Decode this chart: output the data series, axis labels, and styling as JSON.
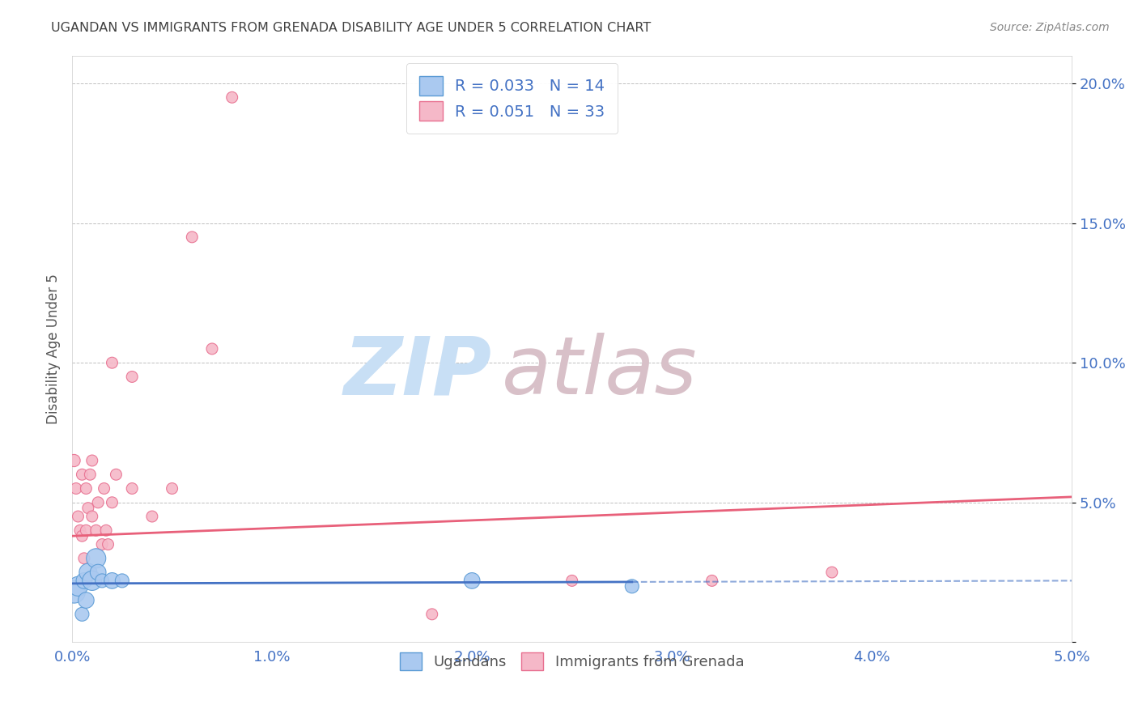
{
  "title": "UGANDAN VS IMMIGRANTS FROM GRENADA DISABILITY AGE UNDER 5 CORRELATION CHART",
  "source": "Source: ZipAtlas.com",
  "ylabel": "Disability Age Under 5",
  "xlim": [
    0.0,
    0.05
  ],
  "ylim": [
    0.0,
    0.21
  ],
  "xtick_labels": [
    "0.0%",
    "1.0%",
    "2.0%",
    "3.0%",
    "4.0%",
    "5.0%"
  ],
  "xtick_vals": [
    0.0,
    0.01,
    0.02,
    0.03,
    0.04,
    0.05
  ],
  "ytick_labels": [
    "",
    "5.0%",
    "10.0%",
    "15.0%",
    "20.0%"
  ],
  "ytick_vals": [
    0.0,
    0.05,
    0.1,
    0.15,
    0.2
  ],
  "ugandan_color": "#aac9f0",
  "grenada_color": "#f5b8c8",
  "ugandan_edge_color": "#5b9bd5",
  "grenada_edge_color": "#e87090",
  "ugandan_line_color": "#4472c4",
  "grenada_line_color": "#e8607a",
  "legend_text_color": "#4472c4",
  "axis_text_color": "#4472c4",
  "title_color": "#404040",
  "R_ugandan": 0.033,
  "N_ugandan": 14,
  "R_grenada": 0.051,
  "N_grenada": 33,
  "ugandan_x": [
    0.0001,
    0.0003,
    0.0005,
    0.0006,
    0.0007,
    0.0008,
    0.001,
    0.0012,
    0.0013,
    0.0015,
    0.002,
    0.0025,
    0.02,
    0.028
  ],
  "ugandan_y": [
    0.018,
    0.02,
    0.01,
    0.022,
    0.015,
    0.025,
    0.022,
    0.03,
    0.025,
    0.022,
    0.022,
    0.022,
    0.022,
    0.02
  ],
  "ugandan_size": [
    400,
    300,
    150,
    200,
    200,
    250,
    300,
    300,
    200,
    150,
    200,
    150,
    200,
    150
  ],
  "grenada_x": [
    0.0001,
    0.0002,
    0.0003,
    0.0004,
    0.0005,
    0.0005,
    0.0006,
    0.0007,
    0.0007,
    0.0008,
    0.0009,
    0.001,
    0.001,
    0.0012,
    0.0013,
    0.0015,
    0.0016,
    0.0017,
    0.0018,
    0.002,
    0.002,
    0.0022,
    0.003,
    0.003,
    0.004,
    0.005,
    0.006,
    0.007,
    0.008,
    0.025,
    0.032,
    0.038,
    0.018
  ],
  "grenada_y": [
    0.065,
    0.055,
    0.045,
    0.04,
    0.038,
    0.06,
    0.03,
    0.04,
    0.055,
    0.048,
    0.06,
    0.045,
    0.065,
    0.04,
    0.05,
    0.035,
    0.055,
    0.04,
    0.035,
    0.05,
    0.1,
    0.06,
    0.095,
    0.055,
    0.045,
    0.055,
    0.145,
    0.105,
    0.195,
    0.022,
    0.022,
    0.025,
    0.01
  ],
  "grenada_size": [
    120,
    100,
    100,
    100,
    100,
    100,
    100,
    100,
    100,
    100,
    100,
    100,
    100,
    100,
    100,
    100,
    100,
    100,
    100,
    100,
    100,
    100,
    100,
    100,
    100,
    100,
    100,
    100,
    100,
    100,
    100,
    100,
    100
  ],
  "ug_trendline_x": [
    0.0,
    0.05
  ],
  "ug_trendline_y": [
    0.021,
    0.022
  ],
  "ug_trendline_solid_end": 0.028,
  "gr_trendline_x": [
    0.0,
    0.05
  ],
  "gr_trendline_y": [
    0.038,
    0.052
  ],
  "bg_color": "#ffffff",
  "grid_color": "#c0c0c0",
  "watermark_zip_color": "#c8dff5",
  "watermark_atlas_color": "#d8c0c8"
}
